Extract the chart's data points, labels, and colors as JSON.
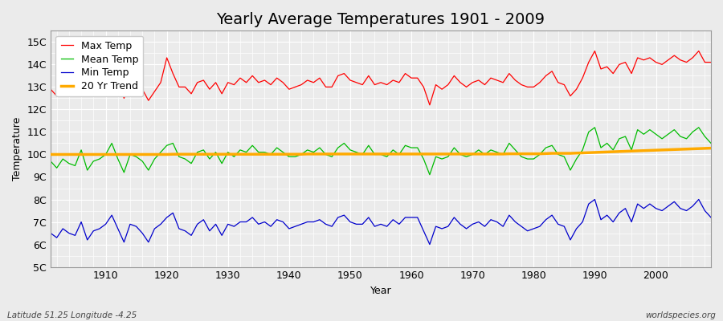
{
  "title": "Yearly Average Temperatures 1901 - 2009",
  "xlabel": "Year",
  "ylabel": "Temperature",
  "bottom_left": "Latitude 51.25 Longitude -4.25",
  "bottom_right": "worldspecies.org",
  "ylim": [
    5,
    15.5
  ],
  "yticks": [
    5,
    6,
    7,
    8,
    9,
    10,
    11,
    12,
    13,
    14,
    15
  ],
  "ytick_labels": [
    "5C",
    "6C",
    "7C",
    "8C",
    "9C",
    "10C",
    "11C",
    "12C",
    "13C",
    "14C",
    "15C"
  ],
  "years": [
    1901,
    1902,
    1903,
    1904,
    1905,
    1906,
    1907,
    1908,
    1909,
    1910,
    1911,
    1912,
    1913,
    1914,
    1915,
    1916,
    1917,
    1918,
    1919,
    1920,
    1921,
    1922,
    1923,
    1924,
    1925,
    1926,
    1927,
    1928,
    1929,
    1930,
    1931,
    1932,
    1933,
    1934,
    1935,
    1936,
    1937,
    1938,
    1939,
    1940,
    1941,
    1942,
    1943,
    1944,
    1945,
    1946,
    1947,
    1948,
    1949,
    1950,
    1951,
    1952,
    1953,
    1954,
    1955,
    1956,
    1957,
    1958,
    1959,
    1960,
    1961,
    1962,
    1963,
    1964,
    1965,
    1966,
    1967,
    1968,
    1969,
    1970,
    1971,
    1972,
    1973,
    1974,
    1975,
    1976,
    1977,
    1978,
    1979,
    1980,
    1981,
    1982,
    1983,
    1984,
    1985,
    1986,
    1987,
    1988,
    1989,
    1990,
    1991,
    1992,
    1993,
    1994,
    1995,
    1996,
    1997,
    1998,
    1999,
    2000,
    2001,
    2002,
    2003,
    2004,
    2005,
    2006,
    2007,
    2008,
    2009
  ],
  "max_temp": [
    12.9,
    12.6,
    12.8,
    12.7,
    12.8,
    13.1,
    12.6,
    12.9,
    13.0,
    13.2,
    13.6,
    13.3,
    12.5,
    13.1,
    13.0,
    12.9,
    12.4,
    12.8,
    13.2,
    14.3,
    13.6,
    13.0,
    13.0,
    12.7,
    13.2,
    13.3,
    12.9,
    13.2,
    12.7,
    13.2,
    13.1,
    13.4,
    13.2,
    13.5,
    13.2,
    13.3,
    13.1,
    13.4,
    13.2,
    12.9,
    13.0,
    13.1,
    13.3,
    13.2,
    13.4,
    13.0,
    13.0,
    13.5,
    13.6,
    13.3,
    13.2,
    13.1,
    13.5,
    13.1,
    13.2,
    13.1,
    13.3,
    13.2,
    13.6,
    13.4,
    13.4,
    13.0,
    12.2,
    13.1,
    12.9,
    13.1,
    13.5,
    13.2,
    13.0,
    13.2,
    13.3,
    13.1,
    13.4,
    13.3,
    13.2,
    13.6,
    13.3,
    13.1,
    13.0,
    13.0,
    13.2,
    13.5,
    13.7,
    13.2,
    13.1,
    12.6,
    12.9,
    13.4,
    14.1,
    14.6,
    13.8,
    13.9,
    13.6,
    14.0,
    14.1,
    13.6,
    14.3,
    14.2,
    14.3,
    14.1,
    14.0,
    14.2,
    14.4,
    14.2,
    14.1,
    14.3,
    14.6,
    14.1,
    14.1
  ],
  "mean_temp": [
    9.7,
    9.4,
    9.8,
    9.6,
    9.5,
    10.2,
    9.3,
    9.7,
    9.8,
    10.0,
    10.5,
    9.8,
    9.2,
    10.0,
    9.9,
    9.7,
    9.3,
    9.8,
    10.1,
    10.4,
    10.5,
    9.9,
    9.8,
    9.6,
    10.1,
    10.2,
    9.8,
    10.1,
    9.6,
    10.1,
    9.9,
    10.2,
    10.1,
    10.4,
    10.1,
    10.1,
    10.0,
    10.3,
    10.1,
    9.9,
    9.9,
    10.0,
    10.2,
    10.1,
    10.3,
    10.0,
    9.9,
    10.3,
    10.5,
    10.2,
    10.1,
    10.0,
    10.4,
    10.0,
    10.0,
    9.9,
    10.2,
    10.0,
    10.4,
    10.3,
    10.3,
    9.8,
    9.1,
    9.9,
    9.8,
    9.9,
    10.3,
    10.0,
    9.9,
    10.0,
    10.2,
    10.0,
    10.2,
    10.1,
    10.0,
    10.5,
    10.2,
    9.9,
    9.8,
    9.8,
    10.0,
    10.3,
    10.4,
    10.0,
    9.9,
    9.3,
    9.8,
    10.2,
    11.0,
    11.2,
    10.3,
    10.5,
    10.2,
    10.7,
    10.8,
    10.2,
    11.1,
    10.9,
    11.1,
    10.9,
    10.7,
    10.9,
    11.1,
    10.8,
    10.7,
    11.0,
    11.2,
    10.8,
    10.5
  ],
  "min_temp": [
    6.5,
    6.3,
    6.7,
    6.5,
    6.4,
    7.0,
    6.2,
    6.6,
    6.7,
    6.9,
    7.3,
    6.7,
    6.1,
    6.9,
    6.8,
    6.5,
    6.1,
    6.7,
    6.9,
    7.2,
    7.4,
    6.7,
    6.6,
    6.4,
    6.9,
    7.1,
    6.6,
    6.9,
    6.4,
    6.9,
    6.8,
    7.0,
    7.0,
    7.2,
    6.9,
    7.0,
    6.8,
    7.1,
    7.0,
    6.7,
    6.8,
    6.9,
    7.0,
    7.0,
    7.1,
    6.9,
    6.8,
    7.2,
    7.3,
    7.0,
    6.9,
    6.9,
    7.2,
    6.8,
    6.9,
    6.8,
    7.1,
    6.9,
    7.2,
    7.2,
    7.2,
    6.6,
    6.0,
    6.8,
    6.7,
    6.8,
    7.2,
    6.9,
    6.7,
    6.9,
    7.0,
    6.8,
    7.1,
    7.0,
    6.8,
    7.3,
    7.0,
    6.8,
    6.6,
    6.7,
    6.8,
    7.1,
    7.3,
    6.9,
    6.8,
    6.2,
    6.7,
    7.0,
    7.8,
    8.0,
    7.1,
    7.3,
    7.0,
    7.4,
    7.6,
    7.0,
    7.8,
    7.6,
    7.8,
    7.6,
    7.5,
    7.7,
    7.9,
    7.6,
    7.5,
    7.7,
    8.0,
    7.5,
    7.2
  ],
  "trend": [
    10.0,
    10.0,
    10.0,
    10.0,
    10.0,
    10.0,
    10.0,
    10.0,
    10.0,
    10.0,
    10.0,
    10.0,
    10.0,
    10.0,
    10.0,
    10.0,
    10.0,
    10.0,
    10.0,
    10.0,
    10.01,
    10.01,
    10.01,
    10.01,
    10.01,
    10.01,
    10.01,
    10.01,
    10.01,
    10.01,
    10.01,
    10.01,
    10.01,
    10.01,
    10.01,
    10.01,
    10.01,
    10.01,
    10.01,
    10.01,
    10.01,
    10.01,
    10.02,
    10.02,
    10.02,
    10.02,
    10.02,
    10.02,
    10.02,
    10.02,
    10.02,
    10.02,
    10.02,
    10.02,
    10.02,
    10.02,
    10.02,
    10.02,
    10.02,
    10.02,
    10.02,
    10.02,
    10.02,
    10.02,
    10.02,
    10.02,
    10.02,
    10.02,
    10.02,
    10.02,
    10.02,
    10.02,
    10.02,
    10.02,
    10.02,
    10.03,
    10.03,
    10.03,
    10.03,
    10.03,
    10.03,
    10.04,
    10.05,
    10.05,
    10.05,
    10.05,
    10.06,
    10.07,
    10.08,
    10.09,
    10.1,
    10.11,
    10.12,
    10.13,
    10.14,
    10.15,
    10.16,
    10.17,
    10.18,
    10.19,
    10.2,
    10.21,
    10.22,
    10.23,
    10.24,
    10.25,
    10.26,
    10.27,
    10.28
  ],
  "max_color": "#ff0000",
  "mean_color": "#00bb00",
  "min_color": "#0000cc",
  "trend_color": "#ffaa00",
  "bg_color": "#ebebeb",
  "plot_bg_color": "#ebebeb",
  "grid_color": "#ffffff",
  "title_fontsize": 14,
  "legend_fontsize": 9,
  "axis_fontsize": 9
}
